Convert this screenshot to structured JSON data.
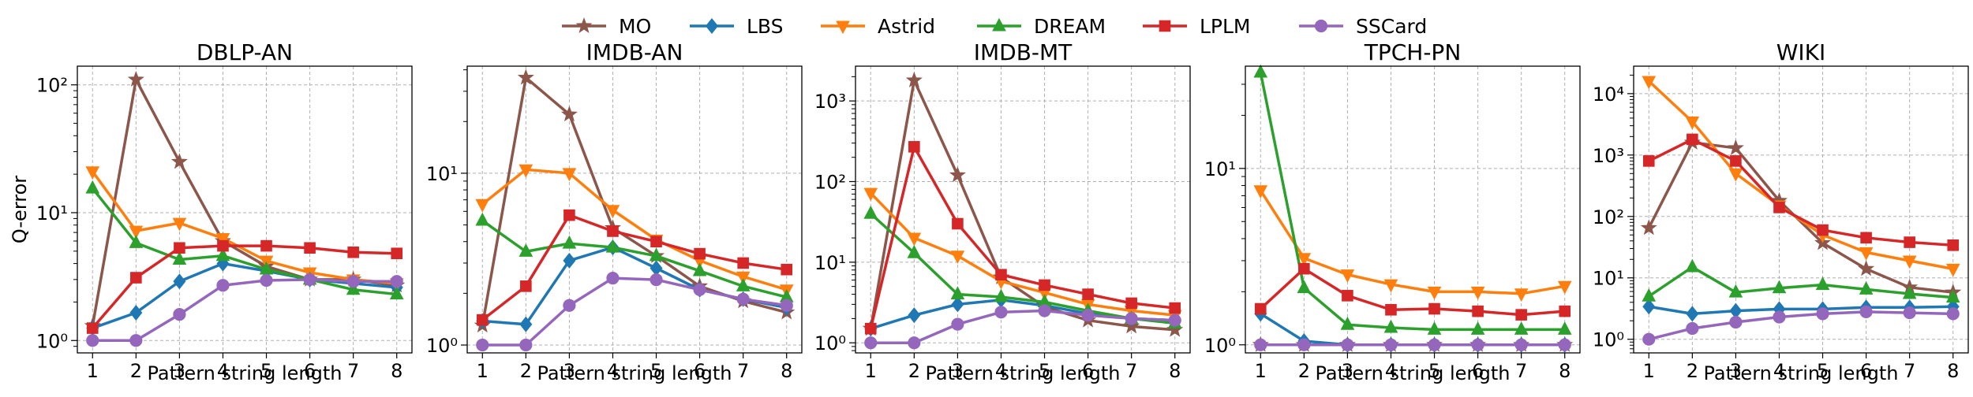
{
  "chart_data": {
    "type": "line",
    "yscale": "log",
    "x": [
      1,
      2,
      3,
      4,
      5,
      6,
      7,
      8
    ],
    "xlabel": "Pattern string length",
    "ylabel": "Q-error",
    "grid": true,
    "legend_position": "top-center",
    "legend": [
      {
        "name": "MO",
        "color": "#8c564b",
        "marker": "star"
      },
      {
        "name": "LBS",
        "color": "#1f77b4",
        "marker": "diamond"
      },
      {
        "name": "Astrid",
        "color": "#ff7f0e",
        "marker": "triangle-down"
      },
      {
        "name": "DREAM",
        "color": "#2ca02c",
        "marker": "triangle-up"
      },
      {
        "name": "LPLM",
        "color": "#d62728",
        "marker": "square"
      },
      {
        "name": "SSCard",
        "color": "#9467bd",
        "marker": "circle"
      }
    ],
    "panels": [
      {
        "title": "DBLP-AN",
        "ylim": [
          0.8,
          140
        ],
        "yticks": [
          1,
          10,
          100
        ],
        "ytick_labels": [
          "10⁰",
          "10¹",
          "10²"
        ],
        "series": [
          {
            "name": "MO",
            "values": [
              1.3,
              110,
              25,
              6,
              3.8,
              3.0,
              3.0,
              2.7
            ]
          },
          {
            "name": "LBS",
            "values": [
              1.25,
              1.65,
              2.9,
              4.0,
              3.5,
              3.0,
              2.8,
              2.6
            ]
          },
          {
            "name": "Astrid",
            "values": [
              21,
              7.2,
              8.3,
              6.3,
              4.2,
              3.4,
              3.0,
              2.8
            ]
          },
          {
            "name": "DREAM",
            "values": [
              15.5,
              5.8,
              4.3,
              4.6,
              3.6,
              3.0,
              2.5,
              2.3
            ]
          },
          {
            "name": "LPLM",
            "values": [
              1.25,
              3.1,
              5.3,
              5.5,
              5.5,
              5.3,
              4.9,
              4.8
            ]
          },
          {
            "name": "SSCard",
            "values": [
              1.0,
              1.0,
              1.6,
              2.7,
              2.95,
              3.0,
              2.9,
              2.9
            ]
          }
        ]
      },
      {
        "title": "IMDB-AN",
        "ylim": [
          0.9,
          42
        ],
        "yticks": [
          1,
          10
        ],
        "ytick_labels": [
          "10⁰",
          "10¹"
        ],
        "series": [
          {
            "name": "MO",
            "values": [
              1.3,
              36,
              22,
              4.8,
              3.3,
              2.2,
              1.8,
              1.55
            ]
          },
          {
            "name": "LBS",
            "values": [
              1.38,
              1.32,
              3.1,
              3.7,
              2.8,
              2.1,
              1.85,
              1.65
            ]
          },
          {
            "name": "Astrid",
            "values": [
              6.6,
              10.5,
              10.0,
              6.1,
              4.1,
              3.1,
              2.5,
              2.1
            ]
          },
          {
            "name": "DREAM",
            "values": [
              5.3,
              3.5,
              3.9,
              3.7,
              3.3,
              2.7,
              2.2,
              1.9
            ]
          },
          {
            "name": "LPLM",
            "values": [
              1.4,
              2.2,
              5.7,
              4.6,
              4.0,
              3.4,
              3.0,
              2.75
            ]
          },
          {
            "name": "SSCard",
            "values": [
              1.0,
              1.0,
              1.7,
              2.45,
              2.4,
              2.1,
              1.85,
              1.7
            ]
          }
        ]
      },
      {
        "title": "IMDB-MT",
        "ylim": [
          0.75,
          2700
        ],
        "yticks": [
          1,
          10,
          100,
          1000
        ],
        "ytick_labels": [
          "10⁰",
          "10¹",
          "10²",
          "10³"
        ],
        "series": [
          {
            "name": "MO",
            "values": [
              1.5,
              1800,
              120,
              6.5,
              2.8,
              1.9,
              1.6,
              1.45
            ]
          },
          {
            "name": "LBS",
            "values": [
              1.5,
              2.2,
              3.0,
              3.4,
              2.9,
              2.3,
              2.0,
              1.9
            ]
          },
          {
            "name": "Astrid",
            "values": [
              72,
              20,
              12,
              5.8,
              4.2,
              3.0,
              2.5,
              2.2
            ]
          },
          {
            "name": "DREAM",
            "values": [
              40,
              13,
              4.0,
              3.7,
              3.2,
              2.5,
              2.0,
              1.75
            ]
          },
          {
            "name": "LPLM",
            "values": [
              1.5,
              270,
              30,
              7.0,
              5.2,
              4.0,
              3.1,
              2.7
            ]
          },
          {
            "name": "SSCard",
            "values": [
              1.0,
              1.0,
              1.7,
              2.4,
              2.5,
              2.2,
              2.0,
              1.9
            ]
          }
        ]
      },
      {
        "title": "TPCH-PN",
        "ylim": [
          0.9,
          38
        ],
        "yticks": [
          1,
          10
        ],
        "ytick_labels": [
          "10⁰",
          "10¹"
        ],
        "series": [
          {
            "name": "MO",
            "values": [
              1.0,
              1.0,
              1.0,
              1.0,
              1.0,
              1.0,
              1.0,
              1.0
            ]
          },
          {
            "name": "LBS",
            "values": [
              1.5,
              1.05,
              1.0,
              1.0,
              1.0,
              1.0,
              1.0,
              1.0
            ]
          },
          {
            "name": "Astrid",
            "values": [
              7.5,
              3.1,
              2.5,
              2.2,
              2.0,
              2.0,
              1.95,
              2.15
            ]
          },
          {
            "name": "DREAM",
            "values": [
              35,
              2.1,
              1.3,
              1.25,
              1.22,
              1.22,
              1.22,
              1.22
            ]
          },
          {
            "name": "LPLM",
            "values": [
              1.6,
              2.7,
              1.9,
              1.58,
              1.6,
              1.55,
              1.48,
              1.55
            ]
          },
          {
            "name": "SSCard",
            "values": [
              1.0,
              1.0,
              1.0,
              1.0,
              1.0,
              1.0,
              1.0,
              1.0
            ]
          }
        ]
      },
      {
        "title": "WIKI",
        "ylim": [
          0.6,
          28000
        ],
        "yticks": [
          1,
          10,
          100,
          1000,
          10000
        ],
        "ytick_labels": [
          "10⁰",
          "10¹",
          "10²",
          "10³",
          "10⁴"
        ],
        "series": [
          {
            "name": "MO",
            "values": [
              65,
              1600,
              1300,
              180,
              37,
              14,
              7.0,
              5.8
            ]
          },
          {
            "name": "LBS",
            "values": [
              3.4,
              2.6,
              2.9,
              3.1,
              3.1,
              3.3,
              3.3,
              3.4
            ]
          },
          {
            "name": "Astrid",
            "values": [
              16000,
              3500,
              500,
              150,
              50,
              26,
              19,
              14
            ]
          },
          {
            "name": "DREAM",
            "values": [
              5.0,
              15,
              5.8,
              6.8,
              7.7,
              6.5,
              5.5,
              4.8
            ]
          },
          {
            "name": "LPLM",
            "values": [
              800,
              1800,
              800,
              140,
              60,
              45,
              38,
              34
            ]
          },
          {
            "name": "SSCard",
            "values": [
              1.0,
              1.5,
              1.9,
              2.3,
              2.6,
              2.8,
              2.7,
              2.6
            ]
          }
        ]
      }
    ]
  }
}
